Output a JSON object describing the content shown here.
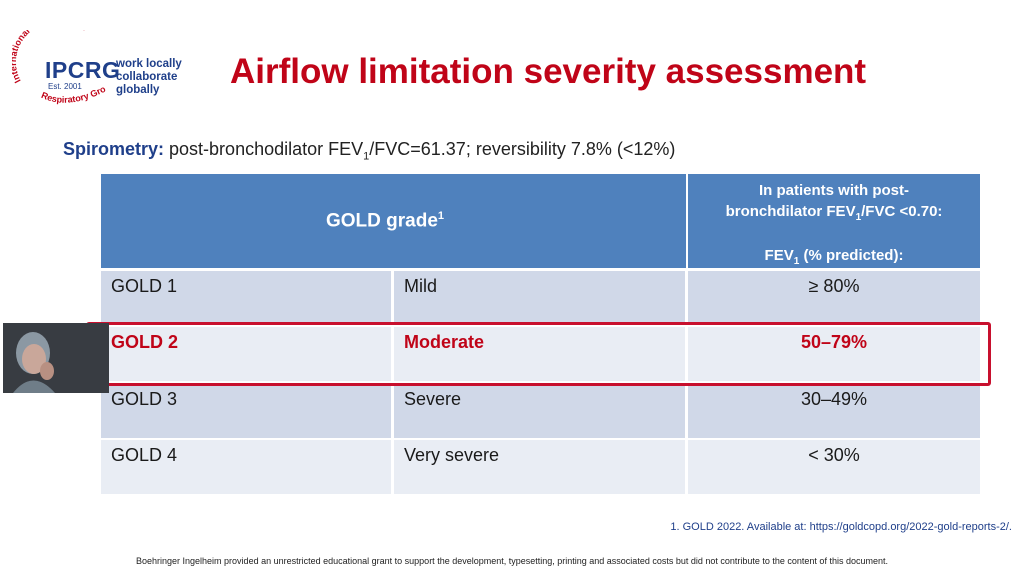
{
  "logo": {
    "arc_text": "International Primary Care Respiratory Group",
    "acronym": "IPCRG",
    "established": "Est. 2001",
    "tagline_1": "work locally",
    "tagline_2": "collaborate globally"
  },
  "title": "Airflow limitation severity assessment",
  "spirometry": {
    "label": "Spirometry:",
    "text_pre": " post-bronchodilator FEV",
    "text_sub": "1",
    "text_post": "/FVC=61.37; reversibility 7.8% (<12%)"
  },
  "table": {
    "header_grade": "GOLD grade",
    "header_grade_sup": "1",
    "header_col3_line1": "In patients with post-",
    "header_col3_line2_pre": "bronchdilator FEV",
    "header_col3_line2_sub": "1",
    "header_col3_line2_post": "/FVC <0.70:",
    "header_col3_line3_pre": "FEV",
    "header_col3_line3_sub": "1",
    "header_col3_line3_post": " (% predicted):",
    "rows": [
      {
        "grade": "GOLD 1",
        "severity": "Mild",
        "fev1": "≥ 80%"
      },
      {
        "grade": "GOLD 2",
        "severity": "Moderate",
        "fev1": "50–79%"
      },
      {
        "grade": "GOLD 3",
        "severity": "Severe",
        "fev1": "30–49%"
      },
      {
        "grade": "GOLD 4",
        "severity": "Very severe",
        "fev1": "< 30%"
      }
    ]
  },
  "reference": "1. GOLD 2022. Available at: https://goldcopd.org/2022-gold-reports-2/.",
  "footer": "Boehringer Ingelheim provided an unrestricted educational grant to support the development, typesetting, printing and associated costs but did not contribute to the content of this document.",
  "colors": {
    "title": "#c00418",
    "brand": "#1f3f8a",
    "header": "#4f81bd",
    "highlight": "#c8102e"
  }
}
